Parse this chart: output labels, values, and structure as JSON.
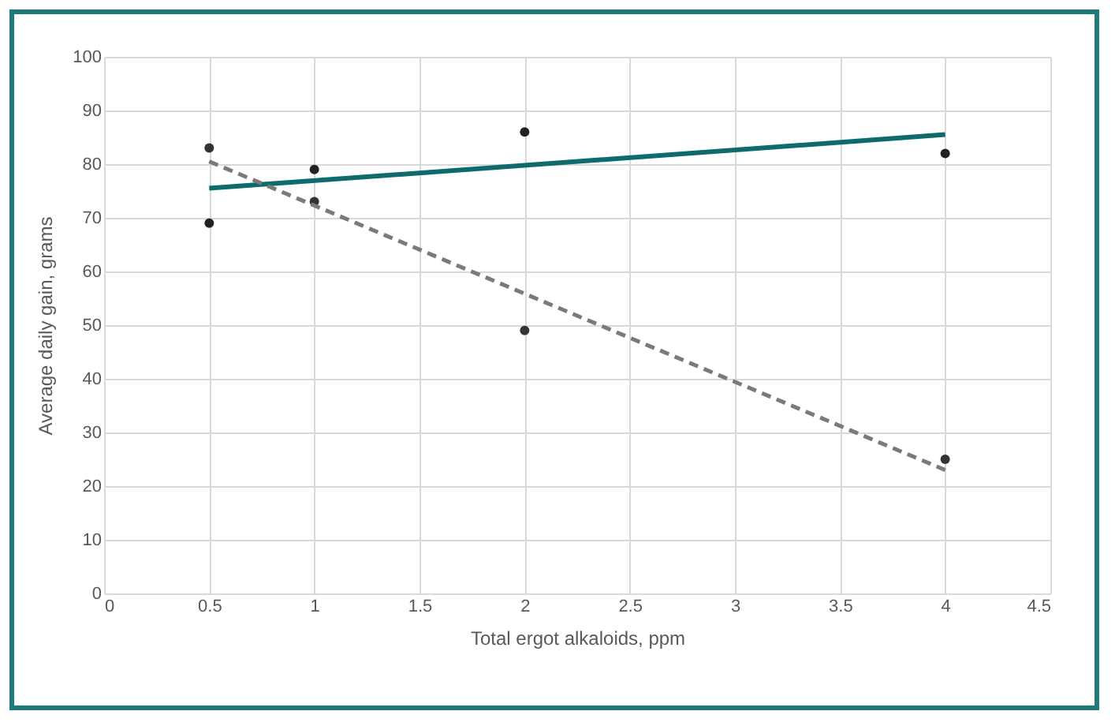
{
  "chart_data": {
    "type": "scatter",
    "xlabel": "Total ergot alkaloids, ppm",
    "ylabel": "Average daily gain, grams",
    "xlim": [
      0,
      4.5
    ],
    "xticks": [
      0,
      0.5,
      1,
      1.5,
      2,
      2.5,
      3,
      3.5,
      4,
      4.5
    ],
    "ylim": [
      0,
      100
    ],
    "yticks": [
      0,
      10,
      20,
      30,
      40,
      50,
      60,
      70,
      80,
      90,
      100
    ],
    "grid": true,
    "series": [
      {
        "type": "scatter",
        "color": "#222222",
        "marker": "circle",
        "x": [
          0.5,
          1,
          2,
          4
        ],
        "values": [
          69,
          79,
          86,
          82
        ]
      },
      {
        "type": "scatter",
        "color": "#333333",
        "marker": "circle",
        "x": [
          0.5,
          1,
          2,
          4
        ],
        "values": [
          83,
          73,
          49,
          25
        ]
      },
      {
        "type": "line",
        "color": "#0f6b6b",
        "line_style": "solid",
        "x": [
          0.5,
          4
        ],
        "values": [
          75.5,
          85.5
        ]
      },
      {
        "type": "line",
        "color": "#7a7a7a",
        "line_style": "dashed",
        "x": [
          0.5,
          4
        ],
        "values": [
          80.5,
          23
        ]
      }
    ]
  }
}
